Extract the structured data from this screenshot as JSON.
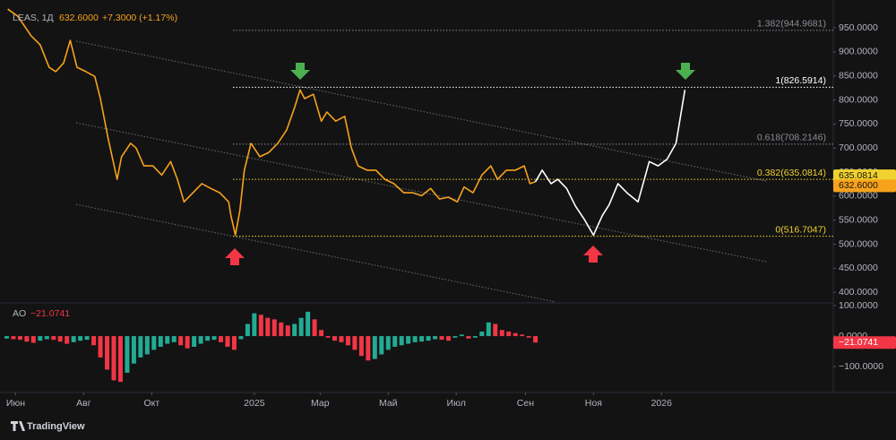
{
  "chart_data": [
    {
      "type": "line",
      "symbol": "LEAS, 1Д",
      "last_price": {
        "value": 632.6,
        "label": "632.6000"
      },
      "change_label": "+7.3000 (+1.17%)",
      "xlim": [
        -14,
        733
      ],
      "xticks": [
        {
          "value": 0,
          "label": "Июн"
        },
        {
          "value": 61,
          "label": "Авг"
        },
        {
          "value": 122,
          "label": "Окт"
        },
        {
          "value": 214,
          "label": "2025"
        },
        {
          "value": 273,
          "label": "Мар"
        },
        {
          "value": 334,
          "label": "Май"
        },
        {
          "value": 395,
          "label": "Июл"
        },
        {
          "value": 457,
          "label": "Сен"
        },
        {
          "value": 518,
          "label": "Ноя"
        },
        {
          "value": 579,
          "label": "2026"
        }
      ],
      "ylim": [
        378,
        1008
      ],
      "yticks": [
        {
          "value": 950,
          "label": "950.0000"
        },
        {
          "value": 900,
          "label": "900.0000"
        },
        {
          "value": 850,
          "label": "850.0000"
        },
        {
          "value": 800,
          "label": "800.0000"
        },
        {
          "value": 750,
          "label": "750.0000"
        },
        {
          "value": 700,
          "label": "700.0000"
        },
        {
          "value": 650,
          "label": "650.0000"
        },
        {
          "value": 600,
          "label": "600.0000"
        },
        {
          "value": 550,
          "label": "550.0000"
        },
        {
          "value": 500,
          "label": "500.0000"
        },
        {
          "value": 450,
          "label": "450.0000"
        },
        {
          "value": 400,
          "label": "400.0000"
        }
      ],
      "fib_levels": [
        {
          "value": 944.9681,
          "label": "1.382(944.9681)",
          "color": "#8a8d96"
        },
        {
          "value": 826.5914,
          "label": "1(826.5914)",
          "color": "#ffffff"
        },
        {
          "value": 708.2146,
          "label": "0.618(708.2146)",
          "color": "#8a8d96"
        },
        {
          "value": 635.0814,
          "label": "0.382(635.0814)",
          "color": "#f2d22e"
        },
        {
          "value": 516.7047,
          "label": "0(516.7047)",
          "color": "#f2d22e"
        }
      ],
      "series": [
        {
          "color": "#f7a21b",
          "x": [
            -7,
            2,
            14,
            22,
            30,
            36,
            43,
            49,
            55,
            63,
            71,
            76,
            83,
            91,
            95,
            103,
            108,
            115,
            123,
            131,
            139,
            145,
            151,
            159,
            167,
            175,
            183,
            191,
            193,
            197,
            201,
            205,
            211,
            219,
            227,
            235,
            243,
            250,
            255,
            259,
            267,
            274,
            279,
            287,
            295,
            301,
            307,
            315,
            323,
            331,
            339,
            348,
            356,
            364,
            372,
            380,
            388,
            396,
            402,
            410,
            418,
            426,
            432,
            440,
            448,
            456,
            461,
            466
          ],
          "values": [
            989,
            974,
            933,
            915,
            868,
            859,
            877,
            924,
            868,
            859,
            849,
            803,
            719,
            635,
            682,
            710,
            700,
            663,
            663,
            644,
            672,
            635,
            588,
            607,
            626,
            616,
            607,
            588,
            560,
            519,
            570,
            654,
            710,
            682,
            691,
            710,
            738,
            784,
            821,
            803,
            812,
            756,
            775,
            756,
            766,
            700,
            663,
            654,
            654,
            635,
            626,
            607,
            607,
            601,
            616,
            594,
            598,
            588,
            619,
            607,
            644,
            663,
            635,
            654,
            654,
            663,
            626,
            630
          ]
        },
        {
          "color": "#ffffff",
          "x": [
            466,
            472,
            480,
            486,
            494,
            502,
            510,
            518,
            526,
            532,
            540,
            548,
            558,
            568,
            576,
            584,
            592,
            600
          ],
          "values": [
            630,
            654,
            626,
            635,
            616,
            579,
            551,
            519,
            560,
            582,
            626,
            607,
            588,
            672,
            663,
            677,
            710,
            821
          ]
        }
      ]
    },
    {
      "type": "bar",
      "label": "AO",
      "value_label": "−21.0741",
      "up_color": "#22ab94",
      "down_color": "#f23645",
      "ylim": [
        -185,
        109
      ],
      "yticks": [
        {
          "value": 100,
          "label": "100.0000"
        },
        {
          "value": 0,
          "label": "0.0000"
        },
        {
          "value": -100,
          "label": "−100.0000"
        }
      ],
      "x": [
        -8,
        -2,
        4,
        10,
        16,
        22,
        28,
        34,
        40,
        46,
        52,
        58,
        64,
        70,
        76,
        82,
        88,
        94,
        100,
        106,
        112,
        118,
        124,
        130,
        136,
        142,
        148,
        154,
        160,
        166,
        172,
        178,
        184,
        190,
        196,
        202,
        208,
        214,
        220,
        226,
        232,
        238,
        244,
        250,
        256,
        262,
        268,
        274,
        280,
        286,
        292,
        298,
        304,
        310,
        316,
        322,
        328,
        334,
        340,
        346,
        352,
        358,
        364,
        370,
        376,
        382,
        388,
        394,
        400,
        406,
        412,
        418,
        424,
        430,
        436,
        442,
        448,
        454,
        460,
        466
      ],
      "values": [
        -8,
        -10,
        -12,
        -18,
        -22,
        -15,
        -10,
        -12,
        -18,
        -25,
        -20,
        -15,
        -12,
        -30,
        -70,
        -110,
        -145,
        -150,
        -120,
        -90,
        -70,
        -60,
        -45,
        -35,
        -25,
        -20,
        -30,
        -40,
        -35,
        -25,
        -15,
        -12,
        -20,
        -35,
        -45,
        -10,
        40,
        75,
        70,
        60,
        55,
        45,
        35,
        40,
        60,
        80,
        55,
        20,
        -5,
        -15,
        -20,
        -30,
        -45,
        -65,
        -80,
        -75,
        -60,
        -45,
        -35,
        -30,
        -25,
        -20,
        -18,
        -15,
        -10,
        -12,
        -15,
        -5,
        5,
        -8,
        -5,
        15,
        45,
        40,
        20,
        15,
        10,
        5,
        -5,
        -21.0741
      ]
    }
  ],
  "branding": "TradingView"
}
